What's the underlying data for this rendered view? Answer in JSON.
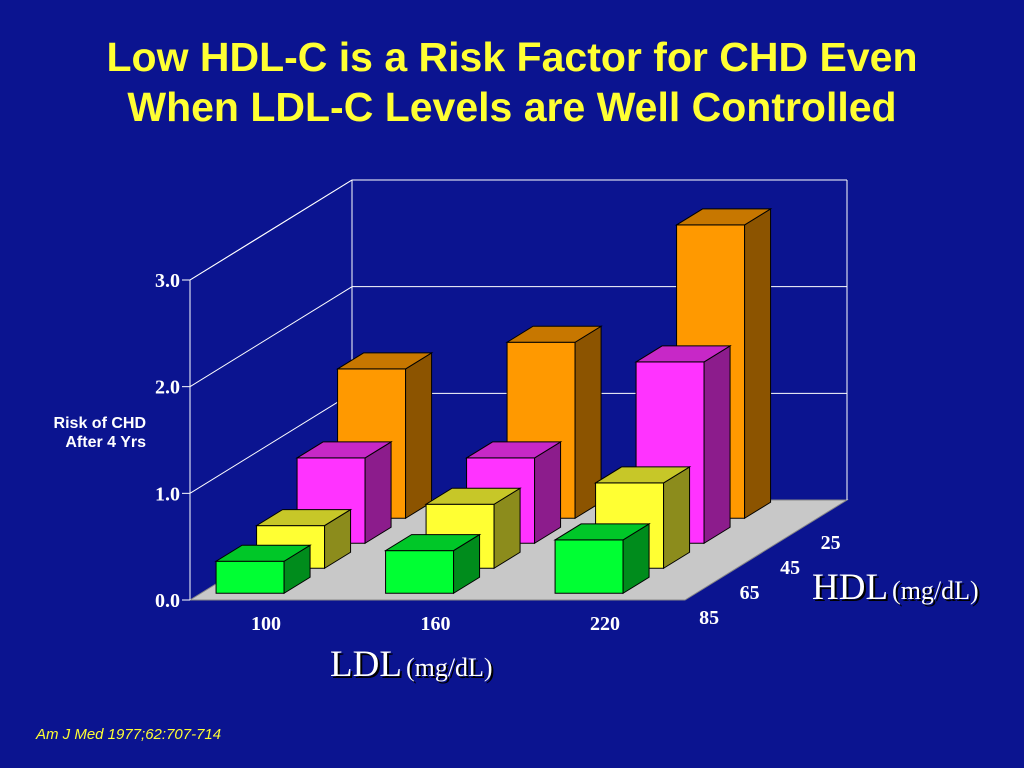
{
  "title": {
    "line1": "Low HDL-C is a Risk Factor for CHD Even",
    "line2": "When LDL-C Levels are Well Controlled"
  },
  "citation": "Am J Med 1977;62:707-714",
  "colors": {
    "background": "#0b1490",
    "title": "#ffff33",
    "floor": "#c8c8c8",
    "hdl_25": "#ff9900",
    "hdl_45": "#ff33ff",
    "hdl_65": "#ffff33",
    "hdl_85": "#00ff33"
  },
  "chart_data": {
    "type": "bar3d",
    "title": "",
    "ylabel_line1": "Risk of CHD",
    "ylabel_line2": "After 4 Yrs",
    "xlabel": "LDL",
    "xlabel_unit": "(mg/dL)",
    "zlabel": "HDL",
    "zlabel_unit": "(mg/dL)",
    "ylim": [
      0,
      3
    ],
    "y_ticks": [
      "0.0",
      "1.0",
      "2.0",
      "3.0"
    ],
    "x_categories": [
      "100",
      "160",
      "220"
    ],
    "z_categories": [
      "85",
      "65",
      "45",
      "25"
    ],
    "series": [
      {
        "name": "85",
        "values": [
          0.3,
          0.4,
          0.5
        ]
      },
      {
        "name": "65",
        "values": [
          0.4,
          0.6,
          0.8
        ]
      },
      {
        "name": "45",
        "values": [
          0.8,
          0.8,
          1.7
        ]
      },
      {
        "name": "25",
        "values": [
          1.4,
          1.65,
          2.75
        ]
      }
    ]
  }
}
